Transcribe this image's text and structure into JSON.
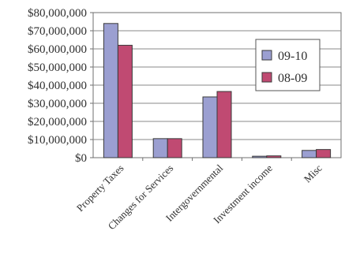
{
  "chart_data": {
    "type": "bar",
    "title": "",
    "xlabel": "",
    "ylabel": "",
    "categories": [
      "Property Taxes",
      "Changes for Services",
      "Intergovernmental",
      "Investment income",
      "Misc"
    ],
    "series": [
      {
        "name": "09-10",
        "values": [
          74000000,
          10500000,
          33500000,
          800000,
          4000000
        ],
        "color": "#9b9fd1"
      },
      {
        "name": "08-09",
        "values": [
          62000000,
          10500000,
          36500000,
          1000000,
          4500000
        ],
        "color": "#c04a72"
      }
    ],
    "ylim": [
      0,
      80000000
    ],
    "y_tick_labels": [
      "$0",
      "$10,000,000",
      "$20,000,000",
      "$30,000,000",
      "$40,000,000",
      "$50,000,000",
      "$60,000,000",
      "$70,000,000",
      "$80,000,000"
    ],
    "grid": true,
    "legend_position": "right"
  }
}
